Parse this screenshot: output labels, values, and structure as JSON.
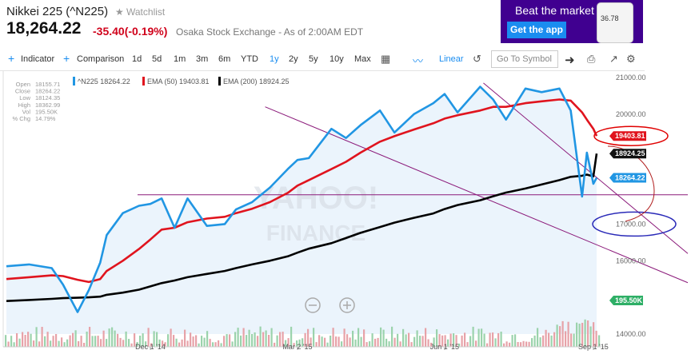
{
  "header": {
    "title": "Nikkei 225 (^N225)",
    "watchlist": "Watchlist",
    "price": "18,264.22",
    "change": "-35.40(-0.19%)",
    "exchange": "Osaka Stock Exchange - As of 2:00AM EDT"
  },
  "ad": {
    "headline": "Beat the market",
    "button": "Get the app",
    "phone_value": "36.78"
  },
  "toolbar": {
    "indicator": "Indicator",
    "comparison": "Comparison",
    "ranges": [
      "1d",
      "5d",
      "1m",
      "3m",
      "6m",
      "YTD",
      "1y",
      "2y",
      "5y",
      "10y",
      "Max"
    ],
    "selected_range": "1y",
    "scale": "Linear",
    "symbol_placeholder": "Go To Symbol"
  },
  "icons": [
    "plus-icon",
    "calendar-icon",
    "chart-type-icon",
    "reset-icon",
    "arrow-right-icon",
    "print-icon",
    "popout-icon",
    "gear-icon",
    "zoom-out-icon",
    "zoom-in-icon",
    "star-icon"
  ],
  "colors": {
    "price": "#2196e3",
    "ema50": "#e0141e",
    "ema200": "#000000",
    "volume_up": "#9bd3ac",
    "volume_down": "#e7a2a8",
    "accent": "#1a8df0",
    "ad_bg": "#400090"
  },
  "stats": [
    {
      "label": "Open",
      "value": "18155.71"
    },
    {
      "label": "Close",
      "value": "18264.22"
    },
    {
      "label": "Low",
      "value": "18124.35"
    },
    {
      "label": "High",
      "value": "18362.99"
    },
    {
      "label": "Vol",
      "value": "195.50K"
    },
    {
      "label": "% Chg",
      "value": "14.79%"
    }
  ],
  "watermark": [
    "YAHOO!",
    "FINANCE"
  ],
  "chart_data": {
    "type": "line",
    "x": [
      "2014-09-03",
      "2014-09-17",
      "2014-10-01",
      "2014-10-08",
      "2014-10-17",
      "2014-10-24",
      "2014-10-31",
      "2014-11-04",
      "2014-11-14",
      "2014-11-24",
      "2014-12-01",
      "2014-12-08",
      "2014-12-16",
      "2014-12-24",
      "2015-01-05",
      "2015-01-16",
      "2015-01-23",
      "2015-02-02",
      "2015-02-13",
      "2015-02-24",
      "2015-03-02",
      "2015-03-09",
      "2015-03-23",
      "2015-04-01",
      "2015-04-10",
      "2015-04-22",
      "2015-05-01",
      "2015-05-13",
      "2015-05-25",
      "2015-06-01",
      "2015-06-09",
      "2015-06-23",
      "2015-07-01",
      "2015-07-09",
      "2015-07-21",
      "2015-07-31",
      "2015-08-11",
      "2015-08-18",
      "2015-08-25",
      "2015-08-28",
      "2015-09-01",
      "2015-09-03"
    ],
    "series": [
      {
        "name": "^N225 18264.22",
        "values": [
          15850,
          15900,
          15800,
          15350,
          14600,
          15200,
          15950,
          16700,
          17300,
          17500,
          17550,
          17700,
          16900,
          17700,
          16950,
          17000,
          17400,
          17600,
          18000,
          18500,
          18750,
          18800,
          19600,
          19350,
          19700,
          20100,
          19500,
          20000,
          20300,
          20550,
          20050,
          20750,
          20400,
          19850,
          20700,
          20600,
          20700,
          20100,
          17750,
          18950,
          18100,
          18264.22
        ]
      },
      {
        "name": "EMA (50) 19403.81",
        "values": [
          15500,
          15550,
          15600,
          15580,
          15480,
          15420,
          15500,
          15720,
          16000,
          16320,
          16580,
          16850,
          16900,
          17050,
          17150,
          17200,
          17300,
          17420,
          17600,
          17850,
          18050,
          18200,
          18500,
          18700,
          18950,
          19250,
          19400,
          19580,
          19750,
          19880,
          19970,
          20100,
          20200,
          20200,
          20300,
          20350,
          20400,
          20370,
          20050,
          19850,
          19600,
          19403.81
        ]
      },
      {
        "name": "EMA (200) 18924.25",
        "values": [
          14900,
          14930,
          14960,
          14980,
          14990,
          15000,
          15020,
          15070,
          15130,
          15210,
          15300,
          15390,
          15460,
          15550,
          15640,
          15720,
          15800,
          15900,
          16000,
          16120,
          16220,
          16330,
          16480,
          16620,
          16760,
          16920,
          17040,
          17170,
          17290,
          17410,
          17520,
          17650,
          17760,
          17860,
          17970,
          18080,
          18200,
          18290,
          18320,
          18350,
          18300,
          18924.25
        ]
      }
    ],
    "volume": {
      "label": "195.50K"
    },
    "current_tags": [
      "19403.81",
      "18924.25",
      "18264.22"
    ],
    "xlabels": [
      {
        "date": "2014-12-01",
        "label": "Dec 1 '14"
      },
      {
        "date": "2015-03-02",
        "label": "Mar 2 '15"
      },
      {
        "date": "2015-06-01",
        "label": "Jun 1 '15"
      },
      {
        "date": "2015-09-01",
        "label": "Sep 1 '15"
      }
    ],
    "yticks": [
      {
        "value": 21000,
        "label": "21000.00"
      },
      {
        "value": 20000,
        "label": "20000.00"
      },
      {
        "value": 17000,
        "label": "17000.00"
      },
      {
        "value": 16000,
        "label": "16000.00"
      },
      {
        "value": 14000,
        "label": "14000.00"
      }
    ],
    "ylim": [
      14000,
      21000
    ],
    "xlim": [
      "2014-09-01",
      "2015-09-05"
    ],
    "annotations": {
      "horizontal_level": 17800,
      "channel_upper": [
        [
          "2015-06-25",
          20850
        ],
        [
          "2015-09-05",
          18200
        ]
      ],
      "channel_lower": [
        [
          "2015-02-10",
          20200
        ],
        [
          "2015-09-05",
          16400
        ]
      ],
      "red_ellipse_around": 19403.81,
      "blue_ellipse_around": 17000
    },
    "legend_position": "top-left",
    "grid": false
  }
}
